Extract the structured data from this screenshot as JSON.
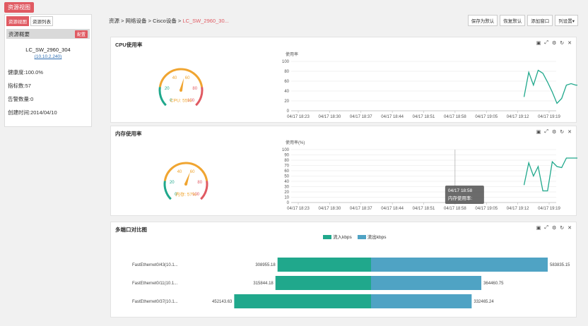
{
  "top_tag": "资源视图",
  "left": {
    "tabs": [
      "资源视图",
      "资源列表"
    ],
    "header": "资源概要",
    "config_label": "配置",
    "device_name": "LC_SW_2960_304",
    "device_ip": "10.10.2.240",
    "health": "健康度:100.0%",
    "indicators": "指标数:57",
    "alarms": "告警数量:0",
    "created": "创建时间:2014/04/10"
  },
  "breadcrumb": {
    "path": "资源 > 网络设备 > Cisco设备 > ",
    "current": "LC_SW_2960_30..."
  },
  "toolbar": {
    "save_default": "保存为默认",
    "restore_default": "恢复默认",
    "add_window": "添加窗口",
    "column_settings": "列设置▾"
  },
  "panel_icons": [
    "▣",
    "⤢",
    "⚙",
    "↻",
    "✕"
  ],
  "colors": {
    "accent": "#e05a62",
    "green": "#20a88c",
    "blue": "#4fa3c4",
    "orange": "#f0a531",
    "red": "#e05a62"
  },
  "cpu": {
    "title": "CPU使用率",
    "gauge_label": "CPU: 55%",
    "gauge_value": 55,
    "chart_data": {
      "type": "line",
      "ylabel": "使用率",
      "ylim": [
        0,
        100
      ],
      "yticks": [
        0,
        20,
        40,
        60,
        80,
        100
      ],
      "xticks": [
        "04/17 18:23",
        "04/17 18:30",
        "04/17 18:37",
        "04/17 18:44",
        "04/17 18:51",
        "04/17 18:58",
        "04/17 19:05",
        "04/17 19:12",
        "04/17 19:19"
      ],
      "series": [
        {
          "x": [
            7.2,
            7.35,
            7.5,
            7.65,
            7.8,
            7.95,
            8.1,
            8.25,
            8.4,
            8.55,
            8.7,
            8.85,
            9.0,
            9.2
          ],
          "values": [
            28,
            78,
            52,
            82,
            76,
            58,
            38,
            15,
            25,
            52,
            55,
            52,
            52,
            52
          ]
        }
      ]
    }
  },
  "mem": {
    "title": "内存使用率",
    "gauge_label": "内存: 57%",
    "gauge_value": 57,
    "tooltip_time": "04/17 18:58",
    "tooltip_label": "内存使用率:",
    "chart_data": {
      "type": "line",
      "ylabel": "使用率(%)",
      "ylim": [
        0,
        100
      ],
      "yticks": [
        0,
        10,
        20,
        30,
        40,
        50,
        60,
        70,
        80,
        90,
        100
      ],
      "xticks": [
        "04/17 18:23",
        "04/17 18:30",
        "04/17 18:37",
        "04/17 18:44",
        "04/17 18:51",
        "04/17 18:58",
        "04/17 19:05",
        "04/17 19:12",
        "04/17 19:19"
      ],
      "series": [
        {
          "x": [
            7.2,
            7.35,
            7.5,
            7.65,
            7.8,
            7.95,
            8.1,
            8.25,
            8.4,
            8.55,
            8.7,
            8.85,
            9.0,
            9.2
          ],
          "values": [
            33,
            75,
            50,
            68,
            22,
            22,
            77,
            68,
            66,
            84,
            84,
            84,
            84,
            84
          ]
        }
      ]
    }
  },
  "ports": {
    "title": "多端口对比图",
    "legend": [
      "流入kbps",
      "流出kbps"
    ],
    "chart_data": {
      "type": "bar",
      "categories": [
        "FastEthernet0/43(10.1...",
        "FastEthernet0/11(10.1...",
        "FastEthernet0/37(10.1..."
      ],
      "series": [
        {
          "name": "流入kbps",
          "values": [
            308955.18,
            315844.18,
            452143.63
          ]
        },
        {
          "name": "流出kbps",
          "values": [
            583835.15,
            364460.75,
            332465.24
          ]
        }
      ],
      "labels_in": [
        "308955.18",
        "315844.18",
        "452143.63"
      ],
      "labels_out": [
        "583835.15",
        "364460.75",
        "332465.24"
      ]
    }
  }
}
